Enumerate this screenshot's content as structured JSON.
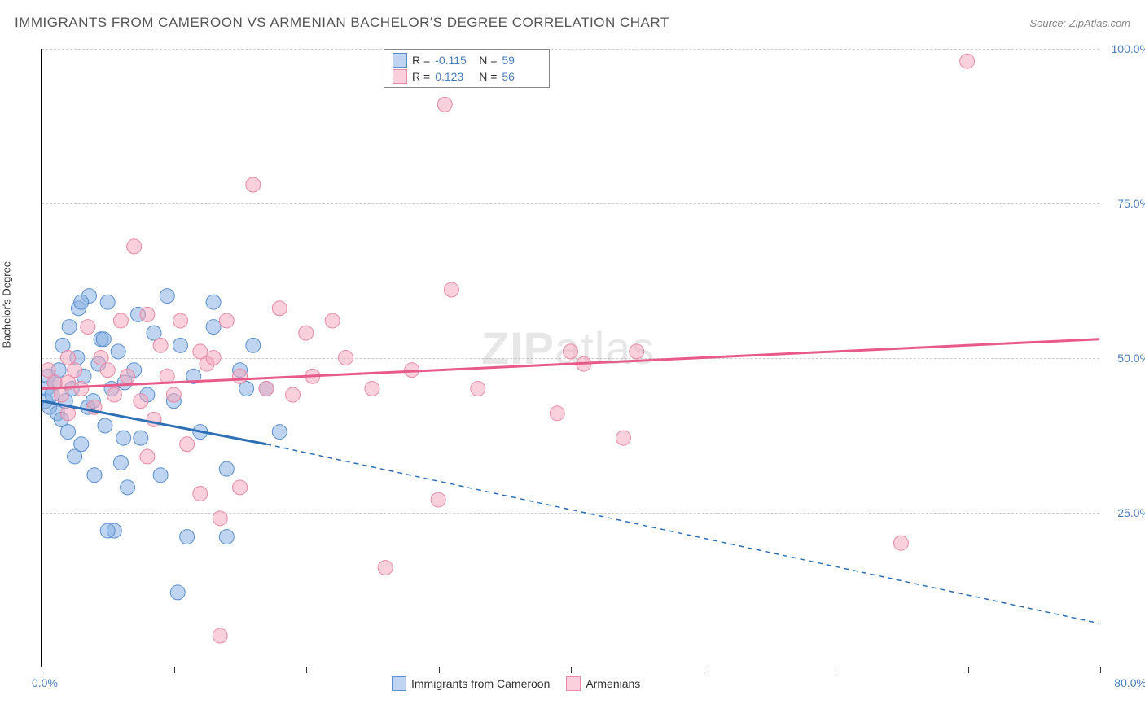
{
  "header": {
    "title": "IMMIGRANTS FROM CAMEROON VS ARMENIAN BACHELOR'S DEGREE CORRELATION CHART",
    "source": "Source: ZipAtlas.com"
  },
  "watermark": {
    "bold": "ZIP",
    "light": "atlas"
  },
  "chart": {
    "type": "scatter",
    "y_axis_label": "Bachelor's Degree",
    "xlim": [
      0,
      80
    ],
    "ylim": [
      0,
      100
    ],
    "x_tick_positions": [
      0,
      10,
      20,
      30,
      40,
      50,
      60,
      70,
      80
    ],
    "x_tick_labels": {
      "first": "0.0%",
      "last": "80.0%"
    },
    "y_gridlines": [
      25,
      50,
      75,
      100
    ],
    "y_tick_labels": [
      "25.0%",
      "50.0%",
      "75.0%",
      "100.0%"
    ],
    "background_color": "#ffffff",
    "grid_color": "#cccccc",
    "axis_color": "#000000",
    "tick_label_color": "#4a7ebb",
    "series": [
      {
        "name": "Immigrants from Cameroon",
        "key": "cameroon",
        "fill_color": "rgba(137,177,227,0.55)",
        "stroke_color": "#5a8fcf",
        "trend_color": "#2e6fb5",
        "R": "-0.115",
        "N": "59",
        "trend": {
          "x1": 0,
          "y1": 43,
          "x2_solid": 17,
          "y2_solid": 36,
          "x2": 80,
          "y2": 7,
          "dash_after_solid": true
        },
        "points": [
          [
            0.3,
            43
          ],
          [
            0.4,
            45
          ],
          [
            0.5,
            47
          ],
          [
            0.6,
            42
          ],
          [
            0.8,
            44
          ],
          [
            1.0,
            46
          ],
          [
            1.2,
            41
          ],
          [
            1.3,
            48
          ],
          [
            1.5,
            40
          ],
          [
            1.6,
            52
          ],
          [
            1.8,
            43
          ],
          [
            2.0,
            38
          ],
          [
            2.1,
            55
          ],
          [
            2.3,
            45
          ],
          [
            2.5,
            34
          ],
          [
            2.7,
            50
          ],
          [
            2.8,
            58
          ],
          [
            3.0,
            36
          ],
          [
            3.2,
            47
          ],
          [
            3.5,
            42
          ],
          [
            3.6,
            60
          ],
          [
            3.9,
            43
          ],
          [
            4.0,
            31
          ],
          [
            4.3,
            49
          ],
          [
            4.5,
            53
          ],
          [
            4.8,
            39
          ],
          [
            5.0,
            59
          ],
          [
            5.3,
            45
          ],
          [
            5.5,
            22
          ],
          [
            5.8,
            51
          ],
          [
            6.0,
            33
          ],
          [
            6.3,
            46
          ],
          [
            6.5,
            29
          ],
          [
            7.0,
            48
          ],
          [
            7.3,
            57
          ],
          [
            7.5,
            37
          ],
          [
            8.0,
            44
          ],
          [
            8.5,
            54
          ],
          [
            9.0,
            31
          ],
          [
            9.5,
            60
          ],
          [
            10.0,
            43
          ],
          [
            10.3,
            12
          ],
          [
            10.5,
            52
          ],
          [
            11.0,
            21
          ],
          [
            11.5,
            47
          ],
          [
            12.0,
            38
          ],
          [
            13.0,
            55
          ],
          [
            13.0,
            59
          ],
          [
            14.0,
            32
          ],
          [
            14.0,
            21
          ],
          [
            15.0,
            48
          ],
          [
            15.5,
            45
          ],
          [
            16.0,
            52
          ],
          [
            17.0,
            45
          ],
          [
            18.0,
            38
          ],
          [
            5.0,
            22
          ],
          [
            3.0,
            59
          ],
          [
            4.7,
            53
          ],
          [
            6.2,
            37
          ]
        ]
      },
      {
        "name": "Armenians",
        "key": "armenians",
        "fill_color": "rgba(244,169,189,0.55)",
        "stroke_color": "#e88aa5",
        "trend_color": "#e85a8a",
        "R": "0.123",
        "N": "56",
        "trend": {
          "x1": 0,
          "y1": 45,
          "x2": 80,
          "y2": 53,
          "dash_after_solid": false
        },
        "points": [
          [
            0.5,
            48
          ],
          [
            1.0,
            46
          ],
          [
            1.5,
            44
          ],
          [
            2.0,
            50
          ],
          [
            2.0,
            46
          ],
          [
            2.0,
            41
          ],
          [
            2.5,
            48
          ],
          [
            3.0,
            45
          ],
          [
            3.5,
            55
          ],
          [
            4.0,
            42
          ],
          [
            4.5,
            50
          ],
          [
            5.0,
            48
          ],
          [
            5.5,
            44
          ],
          [
            6.0,
            56
          ],
          [
            6.5,
            47
          ],
          [
            7.0,
            68
          ],
          [
            7.5,
            43
          ],
          [
            8.0,
            57
          ],
          [
            8.5,
            40
          ],
          [
            9.0,
            52
          ],
          [
            9.5,
            47
          ],
          [
            10.0,
            44
          ],
          [
            10.5,
            56
          ],
          [
            11.0,
            36
          ],
          [
            12.0,
            28
          ],
          [
            12.5,
            49
          ],
          [
            13.0,
            50
          ],
          [
            13.5,
            24
          ],
          [
            13.5,
            5
          ],
          [
            14.0,
            56
          ],
          [
            15.0,
            47
          ],
          [
            15.0,
            29
          ],
          [
            16.0,
            78
          ],
          [
            17.0,
            45
          ],
          [
            18.0,
            58
          ],
          [
            19.0,
            44
          ],
          [
            20.0,
            54
          ],
          [
            20.5,
            47
          ],
          [
            22.0,
            56
          ],
          [
            23.0,
            50
          ],
          [
            25.0,
            45
          ],
          [
            26.0,
            16
          ],
          [
            28.0,
            48
          ],
          [
            30.0,
            27
          ],
          [
            30.5,
            91
          ],
          [
            31.0,
            61
          ],
          [
            33.0,
            45
          ],
          [
            39.0,
            41
          ],
          [
            40.0,
            51
          ],
          [
            41.0,
            49
          ],
          [
            44.0,
            37
          ],
          [
            45.0,
            51
          ],
          [
            65.0,
            20
          ],
          [
            70.0,
            98
          ],
          [
            12.0,
            51
          ],
          [
            8.0,
            34
          ]
        ]
      }
    ]
  },
  "legend_top": {
    "rows": [
      {
        "series_key": "cameroon",
        "r_label": "R =",
        "n_label": "N ="
      },
      {
        "series_key": "armenians",
        "r_label": "R =",
        "n_label": "N ="
      }
    ]
  },
  "legend_bottom": {
    "items": [
      {
        "series_key": "cameroon"
      },
      {
        "series_key": "armenians"
      }
    ]
  }
}
